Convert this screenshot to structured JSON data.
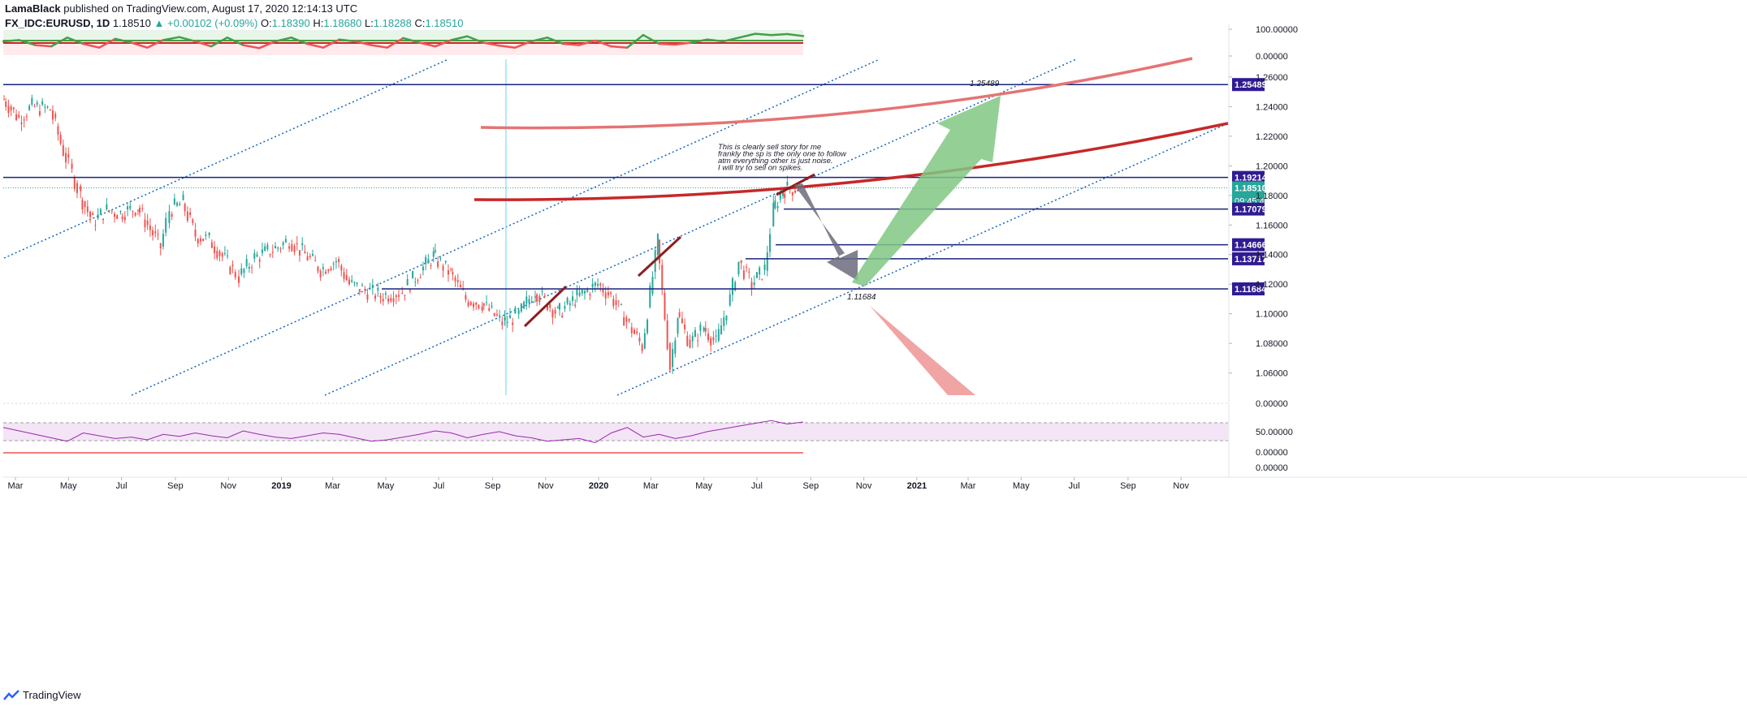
{
  "header": {
    "publisher": "LamaBlack",
    "published_text": "published on TradingView.com, August 17, 2020 12:14:13 UTC",
    "symbol": "FX_IDC:EURUSD, 1D",
    "last": "1.18510",
    "change": "+0.00102 (+0.09%)",
    "open_label": "O:",
    "open": "1.18390",
    "high_label": "H:",
    "high": "1.18680",
    "low_label": "L:",
    "low": "1.18288",
    "close_label": "C:",
    "close": "1.18510"
  },
  "brand": {
    "name": "TradingView",
    "icon": "tradingview-logo-icon"
  },
  "colors": {
    "candle_up": "#26a69a",
    "candle_down": "#ef5350",
    "level_line": "#1a237e",
    "label_bg": "#311b92",
    "price_label_bg": "#26a69a",
    "channel": "#1565c0",
    "curve_dark": "#c62828",
    "curve_light": "#e57373",
    "arrow_grey": "#6b6b7b",
    "arrow_green": "#81c784",
    "arrow_red": "#ef9a9a",
    "osc_green": "#43a047",
    "osc_red": "#ef5350",
    "rsi": "#9c27b0"
  },
  "chart_data": {
    "type": "line",
    "title": "FX_IDC:EURUSD, 1D",
    "y_axis": {
      "range": [
        1.045,
        1.272
      ],
      "ticks": [
        "1.26000",
        "1.24000",
        "1.22000",
        "1.20000",
        "1.18000",
        "1.16000",
        "1.14000",
        "1.12000",
        "1.10000",
        "1.08000",
        "1.06000"
      ]
    },
    "x_axis": {
      "range": [
        "2018-02-15",
        "2021-12-25"
      ],
      "ticks": [
        {
          "label": "Mar",
          "date": "2018-03-01"
        },
        {
          "label": "May",
          "date": "2018-05-01"
        },
        {
          "label": "Jul",
          "date": "2018-07-01"
        },
        {
          "label": "Sep",
          "date": "2018-09-01"
        },
        {
          "label": "Nov",
          "date": "2018-11-01"
        },
        {
          "label": "2019",
          "date": "2019-01-01"
        },
        {
          "label": "Mar",
          "date": "2019-03-01"
        },
        {
          "label": "May",
          "date": "2019-05-01"
        },
        {
          "label": "Jul",
          "date": "2019-07-01"
        },
        {
          "label": "Sep",
          "date": "2019-09-01"
        },
        {
          "label": "Nov",
          "date": "2019-11-01"
        },
        {
          "label": "2020",
          "date": "2020-01-01"
        },
        {
          "label": "Mar",
          "date": "2020-03-01"
        },
        {
          "label": "May",
          "date": "2020-05-01"
        },
        {
          "label": "Jul",
          "date": "2020-07-01"
        },
        {
          "label": "Sep",
          "date": "2020-09-01"
        },
        {
          "label": "Nov",
          "date": "2020-11-01"
        },
        {
          "label": "2021",
          "date": "2021-01-01"
        },
        {
          "label": "Mar",
          "date": "2021-03-01"
        },
        {
          "label": "May",
          "date": "2021-05-01"
        },
        {
          "label": "Jul",
          "date": "2021-07-01"
        },
        {
          "label": "Sep",
          "date": "2021-09-01"
        },
        {
          "label": "Nov",
          "date": "2021-11-01"
        }
      ]
    },
    "series": [
      {
        "x": [
          "2018-02-16",
          "2018-03-05",
          "2018-03-20",
          "2018-04-10",
          "2018-04-25",
          "2018-05-05",
          "2018-05-15",
          "2018-05-29",
          "2018-06-14",
          "2018-06-30",
          "2018-07-20",
          "2018-08-15",
          "2018-08-25",
          "2018-09-10",
          "2018-09-24",
          "2018-10-10",
          "2018-11-13",
          "2018-12-01",
          "2018-12-31",
          "2019-01-10",
          "2019-02-15",
          "2019-03-05",
          "2019-03-20",
          "2019-04-25",
          "2019-05-20",
          "2019-06-25",
          "2019-07-15",
          "2019-08-01",
          "2019-08-20",
          "2019-09-12",
          "2019-10-01",
          "2019-10-20",
          "2019-11-15",
          "2019-12-05",
          "2019-12-31",
          "2020-01-15",
          "2020-02-20",
          "2020-03-09",
          "2020-03-23",
          "2020-04-01",
          "2020-04-15",
          "2020-05-01",
          "2020-05-15",
          "2020-05-31",
          "2020-06-10",
          "2020-06-25",
          "2020-07-10",
          "2020-07-20",
          "2020-07-31",
          "2020-08-17"
        ],
        "values": [
          1.245,
          1.232,
          1.24,
          1.238,
          1.21,
          1.195,
          1.18,
          1.162,
          1.17,
          1.168,
          1.172,
          1.145,
          1.17,
          1.175,
          1.153,
          1.15,
          1.125,
          1.138,
          1.146,
          1.15,
          1.13,
          1.136,
          1.12,
          1.112,
          1.115,
          1.139,
          1.127,
          1.11,
          1.107,
          1.094,
          1.099,
          1.116,
          1.1,
          1.11,
          1.12,
          1.112,
          1.078,
          1.149,
          1.064,
          1.1,
          1.08,
          1.091,
          1.08,
          1.11,
          1.135,
          1.12,
          1.13,
          1.17,
          1.184,
          1.1851
        ]
      }
    ],
    "levels": [
      {
        "label": "1.25489",
        "value": 1.25489
      },
      {
        "label": "1.19214",
        "value": 1.19214
      },
      {
        "label": "1.18510",
        "value": 1.1851,
        "extra": "09:45:49"
      },
      {
        "label": "1.17079",
        "value": 1.17079
      },
      {
        "label": "1.14666",
        "value": 1.14666
      },
      {
        "label": "1.13717",
        "value": 1.13717
      },
      {
        "label": "1.11684",
        "value": 1.11684
      }
    ],
    "annotations": [
      {
        "text": "1.25489"
      },
      {
        "text": "1.11684"
      },
      {
        "lines": [
          "This is clearly sell story for me",
          "frankly the sp is the only one to follow",
          "atm everything other is just noise.",
          "I will try to sell on spikes."
        ]
      }
    ],
    "top_oscillator": {
      "ticks": [
        "100.00000",
        "0.00000"
      ],
      "values": [
        55,
        60,
        40,
        35,
        70,
        45,
        30,
        65,
        50,
        30,
        60,
        72,
        55,
        35,
        70,
        40,
        28,
        55,
        70,
        45,
        30,
        62,
        55,
        40,
        30,
        68,
        50,
        35,
        60,
        75,
        50,
        38,
        30,
        55,
        70,
        45,
        40,
        58,
        35,
        30,
        80,
        45,
        42,
        50,
        62,
        55,
        70,
        85,
        80,
        84,
        76
      ]
    },
    "rsi_panel": {
      "ticks": [
        "0.00000",
        "50.00000",
        "0.00000",
        "0.00000"
      ],
      "values": [
        60,
        55,
        50,
        45,
        40,
        52,
        48,
        44,
        46,
        42,
        50,
        47,
        52,
        48,
        45,
        55,
        50,
        46,
        44,
        48,
        52,
        50,
        45,
        40,
        42,
        46,
        50,
        55,
        52,
        45,
        50,
        54,
        48,
        45,
        40,
        42,
        44,
        38,
        52,
        60,
        46,
        50,
        44,
        48,
        54,
        58,
        62,
        66,
        70,
        65,
        68
      ]
    }
  }
}
